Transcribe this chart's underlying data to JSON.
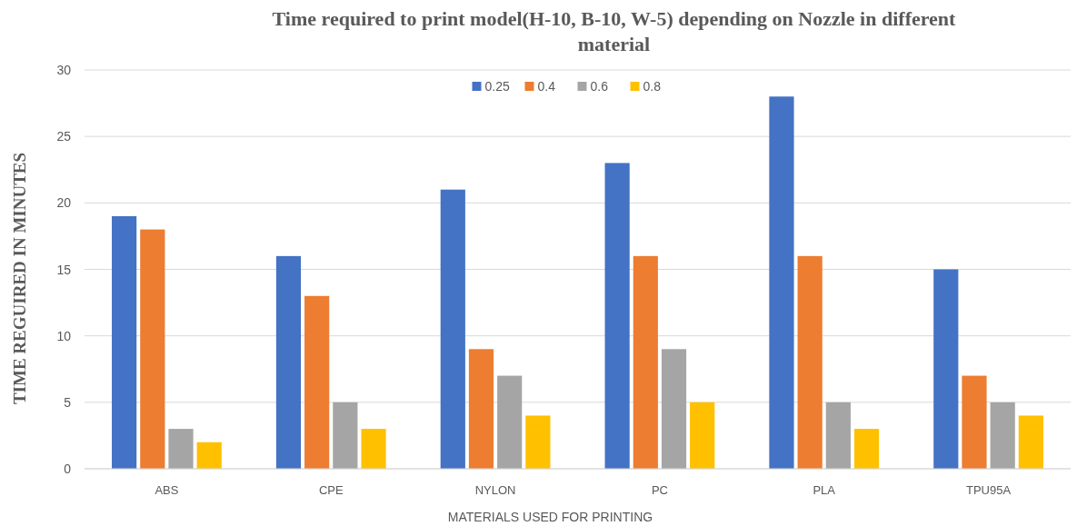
{
  "chart_data": {
    "type": "bar",
    "title": "Time required to print model(H-10, B-10, W-5) depending on Nozzle in different material",
    "xlabel": "MATERIALS USED FOR PRINTING",
    "ylabel": "TIME REGUIRED IN MINUTES",
    "categories": [
      "ABS",
      "CPE",
      "NYLON",
      "PC",
      "PLA",
      "TPU95A"
    ],
    "series": [
      {
        "name": "0.25",
        "color": "#4472c4",
        "values": [
          19,
          16,
          21,
          23,
          28,
          15
        ]
      },
      {
        "name": "0.4",
        "color": "#ed7d31",
        "values": [
          18,
          13,
          9,
          16,
          16,
          7
        ]
      },
      {
        "name": "0.6",
        "color": "#a5a5a5",
        "values": [
          3,
          5,
          7,
          9,
          5,
          5
        ]
      },
      {
        "name": "0.8",
        "color": "#ffc000",
        "values": [
          2,
          3,
          4,
          5,
          3,
          4
        ]
      }
    ],
    "ylim": [
      0,
      30
    ],
    "yticks": [
      0,
      5,
      10,
      15,
      20,
      25,
      30
    ],
    "grid": "y",
    "legend": "top"
  }
}
